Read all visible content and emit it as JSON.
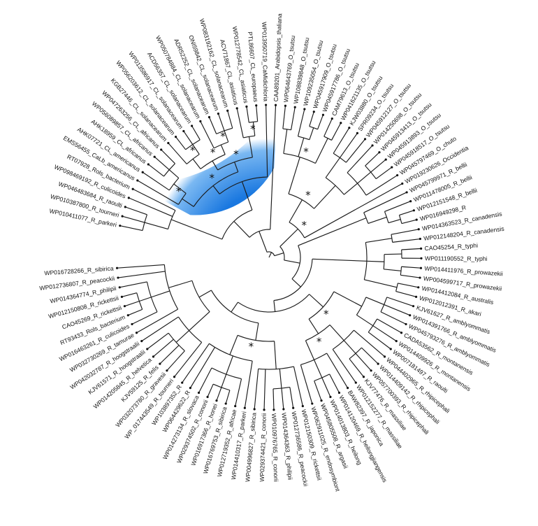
{
  "colors": {
    "branch": "#1a1a1a",
    "highlight_inner": "#1a78e0",
    "highlight_outer": "#ffffff"
  },
  "tree": {
    "leaves": [
      "WP010411077_R_parkeri",
      "WP010387800_R_tourneri",
      "WP046483684_R_raoulti",
      "WP098469192_R_culicoides",
      "RT07928_Rols_bacterium",
      "EMS56455_CaLb_americanus",
      "AHK07721_CL_americanus",
      "AHK18959_CL_africanus",
      "WP056089857_CL_africanus",
      "WP047263256_CL_africanus",
      "KGB27446_CL_solanacearum",
      "WP056203612_CL_solanacearum",
      "WP013586917_CL_solanacearum",
      "ACD56357_CL_solanacearum",
      "WP050784884_CL_solanacearum",
      "ADR52252_CL_solanacearum",
      "ONI59842_CL_solanacearum",
      "WP083192162_CL_solanacearum",
      "ACV71867_CL_asiaticus",
      "WP012778542_CL_asiaticus",
      "PTL86607_CL_europaeus",
      "WP013950719_CaMidichloria",
      "CAA89201_Arabidopsis_thaliana",
      "WP064643769_O_tsutsu",
      "WP108839848_O_tsutsu",
      "WP109235054_O_tsutsu",
      "WP045917909_O_tsutsu",
      "WP045917786_O_tsutsu",
      "CAM79613_O_tsutsu",
      "WP041621135_O_tsutsu",
      "KJW03880_O_tsutsu",
      "SPR09234_O_tsutsu",
      "WP045912127_O_tsutsu",
      "WP014250698_O_tsutsu",
      "WP045913413_O_tsutsu",
      "WP045913893_O_tsutsu",
      "WP045918517_O_tsutsu",
      "WP045797469_O_chuto",
      "WP019230626_Occidentia",
      "WP045799971_R_bellii",
      "WP011478005_R_bellii",
      "WP012151548_R_bellii",
      "WP016949298_R",
      "WP014363523_R_canadensis",
      "WP012148204_R_canadensis",
      "CAO45254_R_typhi",
      "WP011190552_R_typhi",
      "WP014411976_R_prowazekii",
      "WP004599717_R_prowazekii",
      "WP014412084_R_australis",
      "WP012012391_R_akari",
      "KJV61627_R_amblyommatis",
      "WP014391766_R_amblyommatis",
      "WP045793276_R_amblyommatis",
      "CADA53562_R_montanensis",
      "WP014409926_R_montanensis",
      "WP007181497_R_raoulti",
      "WP044402965_R_rhipicephali",
      "WP014409142_R_rhipicephali",
      "WP057700393_R_rhipicephali",
      "KJV77476_R_massiliae",
      "WP012152277_R_massiliae",
      "BAW82397_R_japonica",
      "WP014120469_R_heilongjiangensis",
      "WP014013803_R_heilong",
      "WP045805508_R_argasii",
      "WP062911025_R_endosymbiont",
      "WP012150309_R_rickettsii",
      "WP012736586_R_peacockii",
      "WP014364363_R_philipii",
      "WP010976765_R_conorii",
      "WP029374421_R_conorii",
      "WP004996827_R_sibirica",
      "WP014410317_R_parkeri",
      "WP012719352_R_africae",
      "WP016769753_R_sibirica",
      "WP016917366_R_honei",
      "WP029374502_R_conorii",
      "WP014273134_R_slovaca",
      "WP064429622_R",
      "WP103897352_R",
      "WP_017443549_R_tourneri",
      "WP032073780_R_gravesii",
      "KJV59125_R_felis",
      "WP014205845_R_helvetica",
      "KJV61571_R_hoogstraalii",
      "WP042032787_R_hoogstraalii",
      "WP032730269_R_tamurae",
      "WP016463261_R_culicoides",
      "RT93433_Rols_bacterium",
      "CAO45269_R_rickettsii",
      "WP012150808_R_rickettsii",
      "WP014364774_R_philipii",
      "WP012736807_R_peacockii",
      "WP016728266_R_sibirica"
    ],
    "stars": [
      "*",
      "*",
      "*",
      "*",
      "*",
      "*",
      "*",
      "*",
      "*",
      "*",
      "*",
      "*",
      "*"
    ]
  }
}
